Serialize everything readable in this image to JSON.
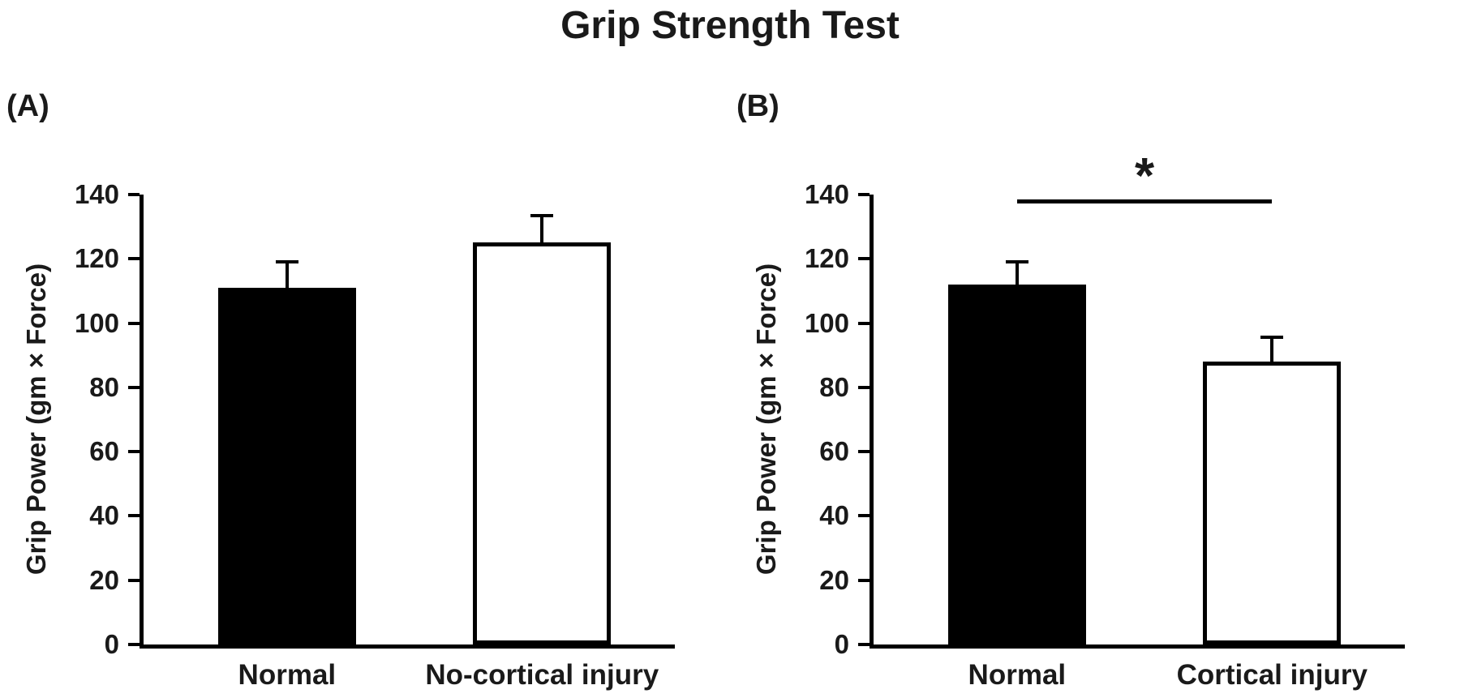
{
  "title": "Grip Strength Test",
  "colors": {
    "axis": "#000000",
    "filled_bar": "#000000",
    "open_bar": "#ffffff",
    "text": "#1a1a1a"
  },
  "chart_data": [
    {
      "type": "bar",
      "panel_label": "(A)",
      "categories": [
        "Normal",
        "No-cortical injury"
      ],
      "values": [
        111,
        125
      ],
      "errors_plus": [
        7.5,
        8
      ],
      "bar_fills": [
        "#000000",
        "#ffffff"
      ],
      "ylabel": "Grip Power (gm × Force)",
      "xlabel": "",
      "ylim": [
        0,
        140
      ],
      "yticks": [
        0,
        20,
        40,
        60,
        80,
        100,
        120,
        140
      ],
      "grid": false,
      "legend": false,
      "significance": null
    },
    {
      "type": "bar",
      "panel_label": "(B)",
      "categories": [
        "Normal",
        "Cortical injury"
      ],
      "values": [
        112,
        88
      ],
      "errors_plus": [
        6.5,
        7
      ],
      "bar_fills": [
        "#000000",
        "#ffffff"
      ],
      "ylabel": "Grip Power (gm × Force)",
      "xlabel": "",
      "ylim": [
        0,
        140
      ],
      "yticks": [
        0,
        20,
        40,
        60,
        80,
        100,
        120,
        140
      ],
      "grid": false,
      "legend": false,
      "significance": {
        "symbol": "*",
        "between": [
          0,
          1
        ],
        "y": 138
      }
    }
  ]
}
